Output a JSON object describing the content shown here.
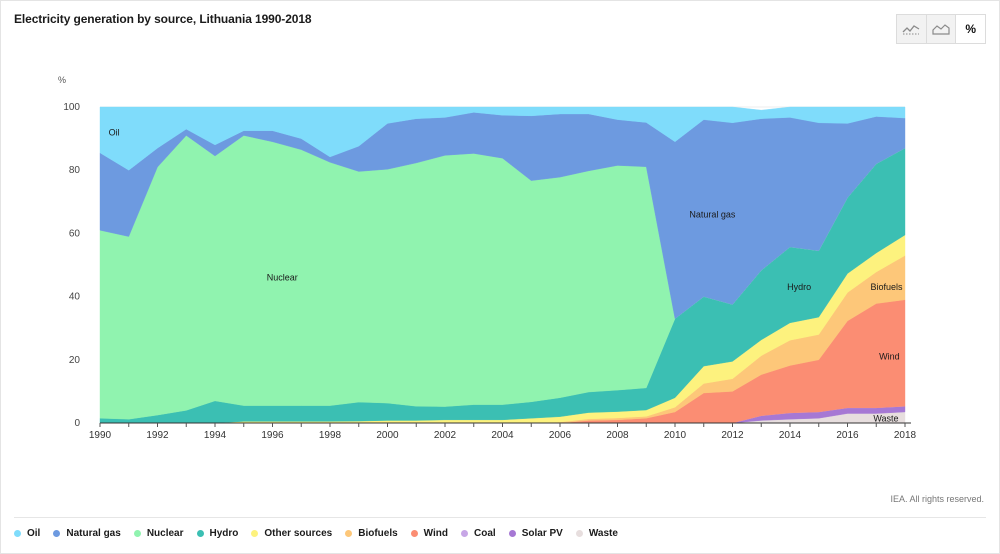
{
  "title": "Electricity generation by source, Lithuania 1990-2018",
  "footer": "IEA. All rights reserved.",
  "toolbar": {
    "line_icon": "line-chart-icon",
    "area_icon": "area-chart-icon",
    "percent_label": "%"
  },
  "colors": {
    "Oil": "#7fdcfb",
    "Natural gas": "#6d9ae0",
    "Nuclear": "#90f3af",
    "Hydro": "#3bbfb3",
    "Other sources": "#fdf27e",
    "Biofuels": "#fdc779",
    "Wind": "#fb8d73",
    "Coal": "#c7a6e6",
    "Solar PV": "#a678d4",
    "Waste": "#e7dede"
  },
  "legend": [
    "Oil",
    "Natural gas",
    "Nuclear",
    "Hydro",
    "Other sources",
    "Biofuels",
    "Wind",
    "Coal",
    "Solar PV",
    "Waste"
  ],
  "chart_data": {
    "type": "area",
    "stacked": true,
    "title": "Electricity generation by source, Lithuania 1990-2018",
    "ylabel": "%",
    "ylim": [
      0,
      100
    ],
    "yticks": [
      0,
      20,
      40,
      60,
      80,
      100
    ],
    "xticks": [
      1990,
      1992,
      1994,
      1996,
      1998,
      2000,
      2002,
      2004,
      2006,
      2008,
      2010,
      2012,
      2014,
      2016,
      2018
    ],
    "x": [
      1990,
      1991,
      1992,
      1993,
      1994,
      1995,
      1996,
      1997,
      1998,
      1999,
      2000,
      2001,
      2002,
      2003,
      2004,
      2005,
      2006,
      2007,
      2008,
      2009,
      2010,
      2011,
      2012,
      2013,
      2014,
      2015,
      2016,
      2017,
      2018
    ],
    "series": [
      {
        "name": "Waste",
        "values": [
          0,
          0,
          0,
          0,
          0,
          0,
          0,
          0,
          0,
          0,
          0,
          0,
          0,
          0,
          0,
          0,
          0,
          0,
          0,
          0,
          0,
          0,
          0,
          0.8,
          1.2,
          1.5,
          3,
          3,
          3.5
        ]
      },
      {
        "name": "Solar PV",
        "values": [
          0,
          0,
          0,
          0,
          0,
          0,
          0,
          0,
          0,
          0,
          0,
          0,
          0,
          0,
          0,
          0,
          0,
          0,
          0,
          0,
          0,
          0,
          0,
          1.5,
          2,
          2,
          1.8,
          1.8,
          1.8
        ]
      },
      {
        "name": "Coal",
        "values": [
          0,
          0,
          0,
          0,
          0,
          0,
          0,
          0,
          0,
          0,
          0,
          0,
          0,
          0,
          0,
          0,
          0,
          0,
          0,
          0,
          0,
          0,
          0,
          0,
          0,
          0,
          0,
          0,
          0
        ]
      },
      {
        "name": "Wind",
        "values": [
          0,
          0,
          0,
          0,
          0,
          0,
          0,
          0,
          0,
          0,
          0,
          0,
          0,
          0,
          0,
          0,
          0,
          0.8,
          1,
          1.5,
          3.5,
          9.5,
          10,
          13,
          15,
          16.5,
          27.5,
          33,
          33.7
        ]
      },
      {
        "name": "Biofuels",
        "values": [
          0,
          0,
          0,
          0,
          0,
          0,
          0,
          0,
          0,
          0,
          0,
          0,
          0,
          0,
          0,
          0,
          0.3,
          0.5,
          0.6,
          0.6,
          1.5,
          3,
          4,
          6,
          8,
          8,
          9,
          10,
          14
        ]
      },
      {
        "name": "Other sources",
        "values": [
          0,
          0,
          0,
          0,
          0,
          0.5,
          0.5,
          0.5,
          0.5,
          0.6,
          0.8,
          0.8,
          1,
          1,
          1,
          1.5,
          1.7,
          2,
          2,
          2,
          3,
          5.5,
          5.5,
          5,
          5.5,
          5.5,
          6,
          6,
          6.5
        ]
      },
      {
        "name": "Hydro",
        "values": [
          1.5,
          1.2,
          2.5,
          4,
          7,
          5,
          5,
          5,
          5,
          6,
          5.5,
          4.5,
          4.2,
          4.8,
          4.8,
          5.2,
          6,
          6.5,
          6.8,
          7,
          25,
          22,
          18,
          22,
          24,
          21,
          24,
          28.2,
          27.5
        ]
      },
      {
        "name": "Nuclear",
        "values": [
          59.5,
          57.8,
          78.5,
          87,
          77.5,
          85.5,
          83.5,
          81,
          77,
          73,
          74,
          77,
          79.5,
          79.5,
          78,
          70,
          69.8,
          70,
          71.1,
          70,
          0,
          0,
          0,
          0,
          0,
          0,
          0,
          0,
          0
        ]
      },
      {
        "name": "Natural gas",
        "values": [
          24.5,
          21,
          6,
          2,
          3.5,
          1.5,
          3.5,
          3.5,
          1.7,
          8,
          14.5,
          14,
          12,
          13,
          13.6,
          20.5,
          20,
          18,
          14.5,
          14,
          56,
          56,
          57.5,
          48,
          41,
          40.5,
          23.5,
          15,
          9.5
        ]
      },
      {
        "name": "Oil",
        "values": [
          14.5,
          20,
          13,
          7,
          12,
          7.5,
          7.5,
          10,
          15.8,
          12.4,
          5.2,
          3.7,
          3.3,
          1.7,
          2.6,
          2.8,
          2.2,
          2.2,
          4,
          4.9,
          11,
          4,
          5,
          2.7,
          3.3,
          5,
          5.2,
          3,
          3.5
        ]
      }
    ],
    "annotations": [
      {
        "text": "Oil",
        "x": 1990.3,
        "y": 92
      },
      {
        "text": "Nuclear",
        "x": 1995.8,
        "y": 46
      },
      {
        "text": "Natural gas",
        "x": 2010.5,
        "y": 66
      },
      {
        "text": "Hydro",
        "x": 2013.9,
        "y": 43
      },
      {
        "text": "Biofuels",
        "x": 2016.8,
        "y": 43
      },
      {
        "text": "Wind",
        "x": 2017.1,
        "y": 21
      },
      {
        "text": "Waste",
        "x": 2016.9,
        "y": 1.5
      }
    ]
  }
}
